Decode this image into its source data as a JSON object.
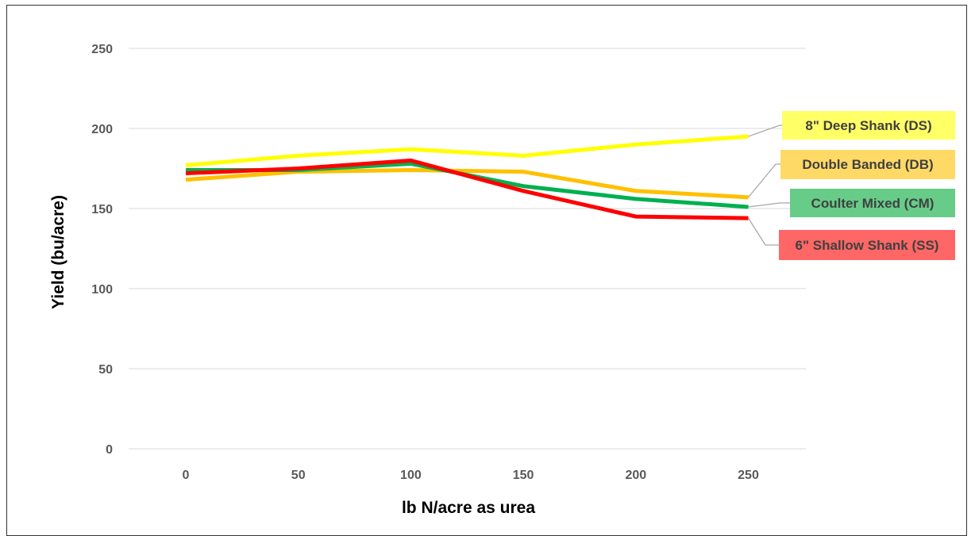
{
  "chart_data": {
    "type": "line",
    "xlabel": "lb N/acre as urea",
    "ylabel": "Yield (bu/acre)",
    "x": [
      0,
      50,
      100,
      150,
      200,
      250
    ],
    "xlim": [
      0,
      250
    ],
    "ylim": [
      0,
      250
    ],
    "xticks": [
      "0",
      "50",
      "100",
      "150",
      "200",
      "250"
    ],
    "yticks": [
      "0",
      "50",
      "100",
      "150",
      "200",
      "250"
    ],
    "grid": true,
    "legend": "right, labels connected to line ends",
    "series": [
      {
        "name": "8\" Deep Shank (DS)",
        "color": "#FFFF00",
        "label_bg": "#FFFF66",
        "values": [
          177,
          183,
          187,
          183,
          190,
          195
        ]
      },
      {
        "name": "Double Banded (DB)",
        "color": "#FFC000",
        "label_bg": "#FFD966",
        "values": [
          168,
          173,
          174,
          173,
          161,
          157
        ]
      },
      {
        "name": "Coulter Mixed (CM)",
        "color": "#00B050",
        "label_bg": "#66CC88",
        "values": [
          174,
          174,
          178,
          164,
          156,
          151
        ]
      },
      {
        "name": "6\" Shallow Shank (SS)",
        "color": "#FF0000",
        "label_bg": "#FF6666",
        "values": [
          172,
          175,
          180,
          161,
          145,
          144
        ]
      }
    ]
  }
}
